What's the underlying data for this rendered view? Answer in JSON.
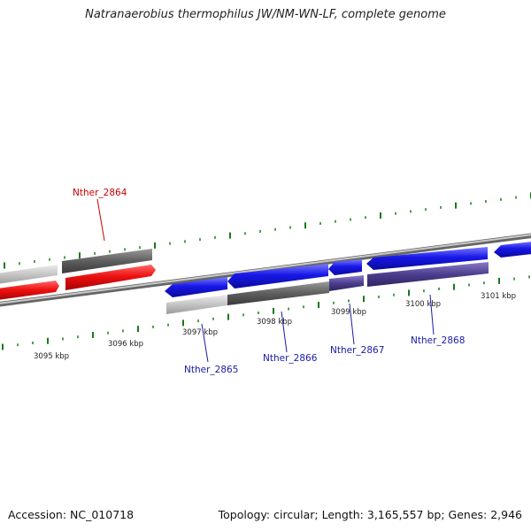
{
  "title": "Natranaerobius thermophilus JW/NM-WN-LF, complete genome",
  "footer": {
    "accession": "Accession: NC_010718",
    "summary": "Topology: circular; Length: 3,165,557 bp; Genes: 2,946"
  },
  "scale_labels": [
    {
      "kbp": 3095,
      "text": "3095 kbp"
    },
    {
      "kbp": 3096,
      "text": "3096 kbp"
    },
    {
      "kbp": 3097,
      "text": "3097 kbp"
    },
    {
      "kbp": 3098,
      "text": "3098 kbp"
    },
    {
      "kbp": 3099,
      "text": "3099 kbp"
    },
    {
      "kbp": 3100,
      "text": "3100 kbp"
    },
    {
      "kbp": 3101,
      "text": "3101 kbp"
    }
  ],
  "gene_labels": [
    {
      "name": "Nther_2864",
      "color": "#cc0000"
    },
    {
      "name": "Nther_2865",
      "color": "#1a1aa6"
    },
    {
      "name": "Nther_2866",
      "color": "#1a1aa6"
    },
    {
      "name": "Nther_2867",
      "color": "#1a1aa6"
    },
    {
      "name": "Nther_2868",
      "color": "#1a1aa6"
    }
  ],
  "colors": {
    "forward_gene": "#ee1111",
    "reverse_gene": "#1818e8",
    "light_gray_feature": "#c4c4c4",
    "dark_gray_feature": "#5e5e5e",
    "purple_feature": "#4c3d8e",
    "tick": "#1a7a1a",
    "backbone": "#8a8a8a"
  }
}
